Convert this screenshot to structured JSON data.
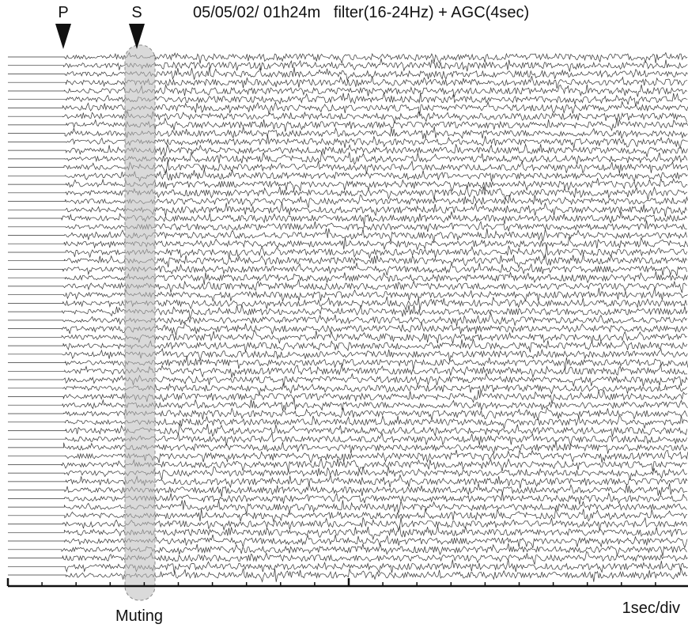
{
  "header": {
    "title": "05/05/02/ 01h24m   filter(16-24Hz) + AGC(4sec)"
  },
  "markers": [
    {
      "label": "P"
    },
    {
      "label": "S"
    }
  ],
  "annotations": {
    "muting": "Muting",
    "scale": "1sec/div"
  }
}
